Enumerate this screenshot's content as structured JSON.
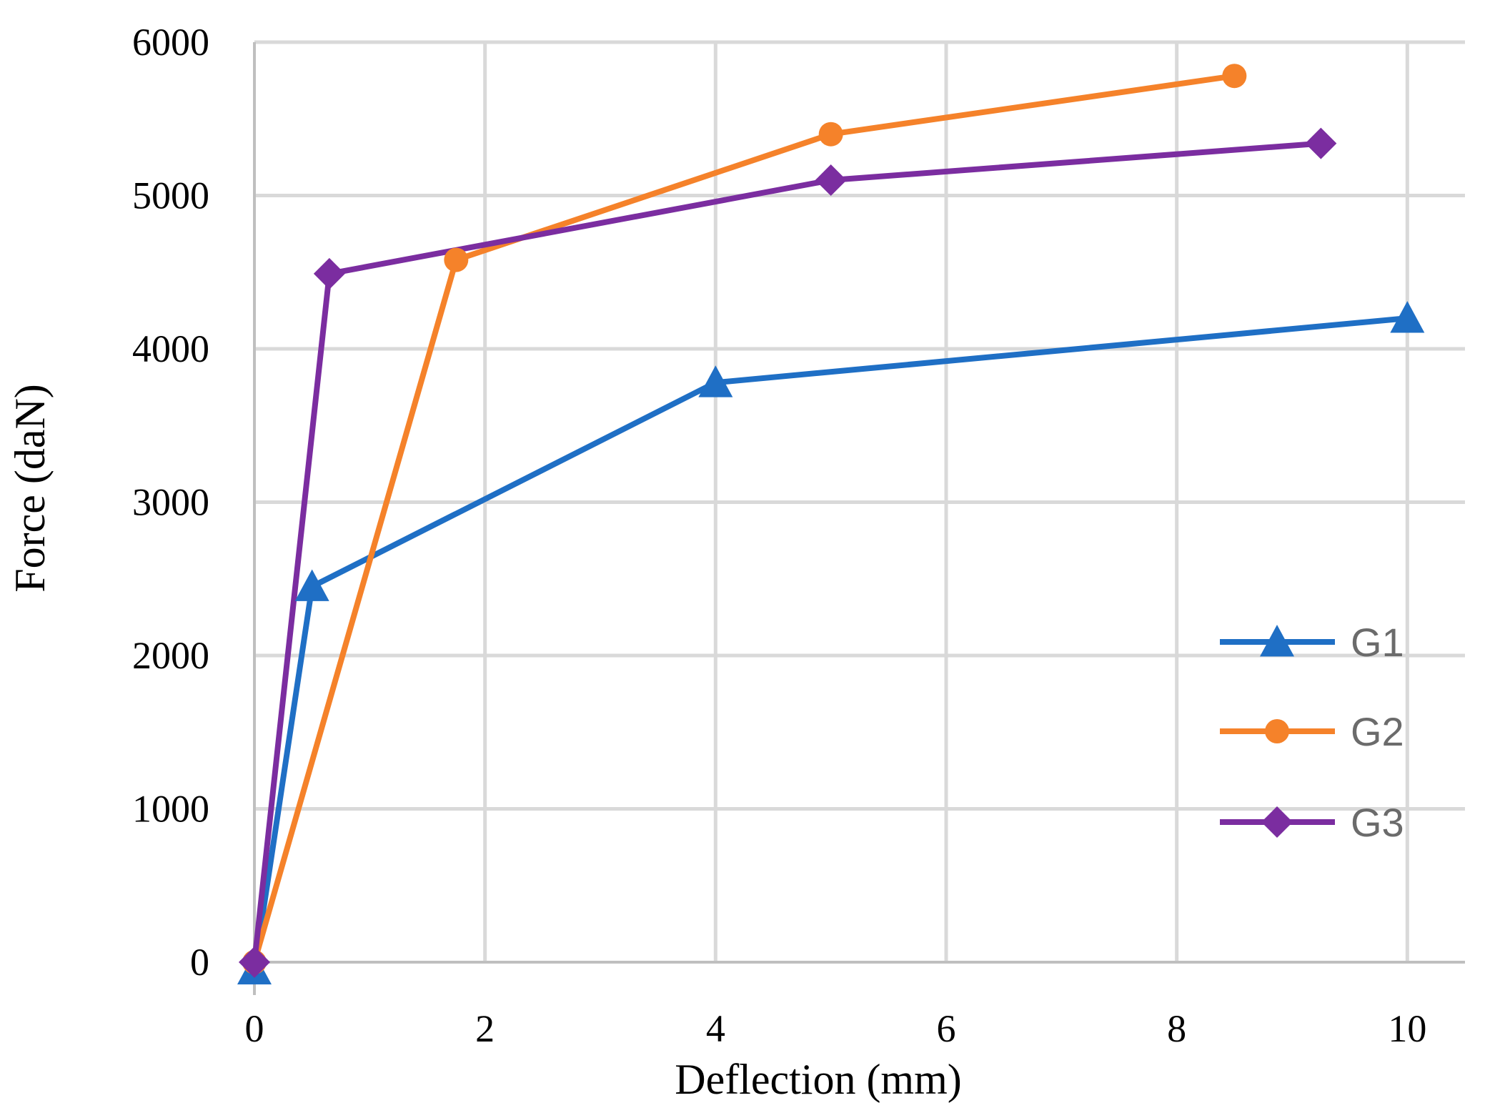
{
  "chart_data": {
    "type": "line",
    "title": "",
    "xlabel": "Deflection (mm)",
    "ylabel": "Force (daN)",
    "xlim": [
      0,
      10.5
    ],
    "ylim": [
      0,
      6000
    ],
    "x_ticks": [
      0,
      2,
      4,
      6,
      8,
      10
    ],
    "y_ticks": [
      0,
      1000,
      2000,
      3000,
      4000,
      5000,
      6000
    ],
    "grid": true,
    "legend_position": "right",
    "series": [
      {
        "name": "G1",
        "color": "#1f6fc5",
        "marker": "triangle",
        "points": [
          [
            0,
            -50
          ],
          [
            0.5,
            2450
          ],
          [
            4,
            3780
          ],
          [
            10,
            4200
          ]
        ]
      },
      {
        "name": "G2",
        "color": "#f5822a",
        "marker": "circle",
        "points": [
          [
            0,
            0
          ],
          [
            1.75,
            4580
          ],
          [
            5,
            5400
          ],
          [
            8.5,
            5780
          ]
        ]
      },
      {
        "name": "G3",
        "color": "#7b2da0",
        "marker": "diamond",
        "points": [
          [
            0,
            0
          ],
          [
            0.65,
            4490
          ],
          [
            5,
            5100
          ],
          [
            9.25,
            5340
          ]
        ]
      }
    ]
  }
}
